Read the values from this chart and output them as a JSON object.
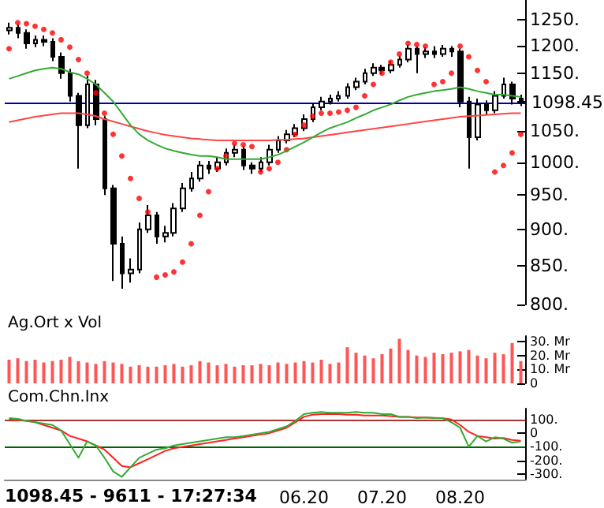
{
  "chart_data": [
    {
      "type": "candlestick",
      "tick_labels": "y",
      "log": true,
      "color": "#000000",
      "categories": [
        null,
        null,
        null,
        null,
        null,
        null,
        null,
        null,
        null,
        null,
        null,
        null,
        null,
        null,
        null,
        null,
        null,
        null,
        null,
        null,
        null,
        null,
        null,
        null,
        null,
        null,
        null,
        null,
        null,
        null,
        null,
        null,
        null,
        null,
        "06.20",
        null,
        null,
        null,
        null,
        null,
        null,
        null,
        null,
        "07.20",
        null,
        null,
        null,
        null,
        null,
        null,
        null,
        null,
        "08.20",
        null,
        null,
        null,
        null,
        null,
        null,
        null
      ],
      "ohlc": [
        [
          1230,
          1245,
          1222,
          1235
        ],
        [
          1235,
          1242,
          1215,
          1225
        ],
        [
          1225,
          1232,
          1195,
          1205
        ],
        [
          1205,
          1220,
          1198,
          1212
        ],
        [
          1212,
          1220,
          1200,
          1208
        ],
        [
          1208,
          1215,
          1172,
          1180
        ],
        [
          1180,
          1188,
          1140,
          1150
        ],
        [
          1150,
          1158,
          1100,
          1110
        ],
        [
          1110,
          1115,
          990,
          1060
        ],
        [
          1060,
          1145,
          1055,
          1130
        ],
        [
          1130,
          1138,
          1060,
          1070
        ],
        [
          1070,
          1075,
          950,
          960
        ],
        [
          960,
          965,
          830,
          880
        ],
        [
          880,
          890,
          820,
          840
        ],
        [
          840,
          860,
          828,
          845
        ],
        [
          845,
          910,
          840,
          900
        ],
        [
          900,
          935,
          895,
          920
        ],
        [
          920,
          925,
          880,
          890
        ],
        [
          890,
          905,
          882,
          895
        ],
        [
          895,
          938,
          890,
          930
        ],
        [
          930,
          968,
          925,
          960
        ],
        [
          960,
          985,
          955,
          975
        ],
        [
          975,
          1002,
          970,
          995
        ],
        [
          995,
          1002,
          982,
          990
        ],
        [
          990,
          1008,
          985,
          1000
        ],
        [
          1000,
          1022,
          995,
          1015
        ],
        [
          1015,
          1028,
          1008,
          1020
        ],
        [
          1020,
          1025,
          988,
          995
        ],
        [
          995,
          1000,
          982,
          990
        ],
        [
          990,
          1008,
          985,
          1000
        ],
        [
          1000,
          1028,
          995,
          1020
        ],
        [
          1020,
          1042,
          1015,
          1035
        ],
        [
          1035,
          1052,
          1030,
          1045
        ],
        [
          1045,
          1062,
          1040,
          1055
        ],
        [
          1055,
          1078,
          1050,
          1070
        ],
        [
          1070,
          1098,
          1065,
          1090
        ],
        [
          1090,
          1108,
          1085,
          1100
        ],
        [
          1100,
          1112,
          1095,
          1105
        ],
        [
          1105,
          1118,
          1100,
          1110
        ],
        [
          1110,
          1132,
          1105,
          1125
        ],
        [
          1125,
          1142,
          1120,
          1135
        ],
        [
          1135,
          1158,
          1130,
          1150
        ],
        [
          1150,
          1168,
          1145,
          1160
        ],
        [
          1160,
          1165,
          1148,
          1155
        ],
        [
          1155,
          1172,
          1150,
          1165
        ],
        [
          1165,
          1182,
          1160,
          1175
        ],
        [
          1175,
          1202,
          1170,
          1195
        ],
        [
          1195,
          1200,
          1150,
          1185
        ],
        [
          1185,
          1198,
          1178,
          1190
        ],
        [
          1190,
          1200,
          1178,
          1185
        ],
        [
          1185,
          1202,
          1180,
          1195
        ],
        [
          1195,
          1200,
          1180,
          1190
        ],
        [
          1190,
          1195,
          1090,
          1100
        ],
        [
          1100,
          1108,
          990,
          1040
        ],
        [
          1040,
          1105,
          1035,
          1095
        ],
        [
          1095,
          1102,
          1078,
          1085
        ],
        [
          1085,
          1118,
          1080,
          1110
        ],
        [
          1110,
          1142,
          1105,
          1130
        ],
        [
          1130,
          1135,
          1095,
          1105
        ],
        [
          1105,
          1112,
          1092,
          1098.45
        ]
      ],
      "series": [
        {
          "type": "line",
          "color": "#33aa33",
          "marker": "none",
          "values": [
            1140,
            1145,
            1150,
            1155,
            1158,
            1160,
            1158,
            1152,
            1148,
            1140,
            1130,
            1115,
            1100,
            1080,
            1060,
            1045,
            1035,
            1028,
            1022,
            1018,
            1015,
            1012,
            1010,
            1010,
            1008,
            1005,
            1005,
            1005,
            1005,
            1005,
            1008,
            1012,
            1018,
            1025,
            1032,
            1040,
            1048,
            1055,
            1060,
            1065,
            1072,
            1078,
            1085,
            1090,
            1095,
            1102,
            1108,
            1112,
            1115,
            1118,
            1120,
            1122,
            1125,
            1122,
            1118,
            1115,
            1112,
            1112,
            1110,
            1108
          ]
        },
        {
          "type": "line",
          "color": "#ff4444",
          "marker": "none",
          "values": [
            1065,
            1068,
            1071,
            1074,
            1076,
            1078,
            1080,
            1080,
            1080,
            1078,
            1075,
            1070,
            1066,
            1062,
            1058,
            1054,
            1050,
            1047,
            1044,
            1042,
            1040,
            1038,
            1037,
            1036,
            1035,
            1035,
            1035,
            1035,
            1035,
            1035,
            1035,
            1036,
            1036,
            1037,
            1038,
            1040,
            1042,
            1044,
            1046,
            1048,
            1050,
            1052,
            1054,
            1056,
            1058,
            1060,
            1062,
            1064,
            1066,
            1068,
            1070,
            1072,
            1074,
            1075,
            1076,
            1077,
            1078,
            1079,
            1080,
            1080
          ]
        },
        {
          "type": "scatter",
          "color": "#ff0000",
          "marker": "circle",
          "values": [
            1195,
            1245,
            1243,
            1238,
            1232,
            1225,
            1212,
            1198,
            1175,
            1150,
            1115,
            1080,
            1045,
            1010,
            975,
            945,
            925,
            835,
            838,
            842,
            855,
            880,
            920,
            955,
            990,
            1010,
            1030,
            1028,
            1025,
            985,
            990,
            1000,
            1020,
            1045,
            1060,
            1075,
            1080,
            1080,
            1082,
            1085,
            1090,
            1110,
            1130,
            1150,
            1170,
            1185,
            1205,
            1203,
            1200,
            1130,
            1135,
            1150,
            1200,
            1180,
            1155,
            1135,
            985,
            995,
            1015,
            1045
          ]
        }
      ],
      "ylim": [
        800,
        1290
      ],
      "yticks": [
        {
          "value": 800,
          "label": "800."
        },
        {
          "value": 850,
          "label": "850."
        },
        {
          "value": 900,
          "label": "900."
        },
        {
          "value": 950,
          "label": "950."
        },
        {
          "value": 1000,
          "label": "1000."
        },
        {
          "value": 1050,
          "label": "1050."
        },
        {
          "value": 1100,
          "label": null
        },
        {
          "value": 1150,
          "label": "1150."
        },
        {
          "value": 1200,
          "label": "1200."
        },
        {
          "value": 1250,
          "label": "1250."
        }
      ],
      "ref_lines": [
        {
          "axis": "y",
          "value": 1098.45,
          "label": "1098.45",
          "color": "#0000aa"
        }
      ]
    },
    {
      "type": "bar",
      "title": "Ag.Ort x Vol",
      "tick_labels": "y",
      "color": "#ff5555",
      "categories": [
        null,
        null,
        null,
        null,
        null,
        null,
        null,
        null,
        null,
        null,
        null,
        null,
        null,
        null,
        null,
        null,
        null,
        null,
        null,
        null,
        null,
        null,
        null,
        null,
        null,
        null,
        null,
        null,
        null,
        null,
        null,
        null,
        null,
        null,
        "06.20",
        null,
        null,
        null,
        null,
        null,
        null,
        null,
        null,
        "07.20",
        null,
        null,
        null,
        null,
        null,
        null,
        null,
        null,
        "08.20",
        null,
        null,
        null,
        null,
        null,
        null,
        null
      ],
      "values": [
        17,
        18,
        16,
        17,
        15,
        16,
        17,
        19,
        16,
        15,
        14,
        16,
        15,
        14,
        12,
        13,
        12,
        12,
        13,
        14,
        12,
        13,
        16,
        15,
        13,
        14,
        12,
        13,
        13,
        14,
        13,
        15,
        14,
        15,
        16,
        15,
        17,
        14,
        15,
        26,
        22,
        20,
        18,
        21,
        25,
        32,
        24,
        20,
        19,
        22,
        21,
        22,
        23,
        24,
        20,
        18,
        22,
        21,
        29,
        16
      ],
      "ylim": [
        0,
        34
      ],
      "yticks": [
        {
          "value": 0,
          "label": "0"
        },
        {
          "value": 10,
          "label": "10. Mr"
        },
        {
          "value": 20,
          "label": "20. Mr"
        },
        {
          "value": 30,
          "label": "30. Mr"
        }
      ]
    },
    {
      "type": "line",
      "title": "Com.Chn.Inx",
      "marker": "none",
      "categories": [
        null,
        null,
        null,
        null,
        null,
        null,
        null,
        null,
        null,
        null,
        null,
        null,
        null,
        null,
        null,
        null,
        null,
        null,
        null,
        null,
        null,
        null,
        null,
        null,
        null,
        null,
        null,
        null,
        null,
        null,
        null,
        null,
        null,
        null,
        "06.20",
        null,
        null,
        null,
        null,
        null,
        null,
        null,
        null,
        "07.20",
        null,
        null,
        null,
        null,
        null,
        null,
        null,
        null,
        "08.20",
        null,
        null,
        null,
        null,
        null,
        null,
        null
      ],
      "series": [
        {
          "color": "#33aa33",
          "values": [
            110,
            105,
            90,
            80,
            70,
            60,
            20,
            -80,
            -180,
            -60,
            -90,
            -180,
            -280,
            -320,
            -250,
            -180,
            -150,
            -120,
            -110,
            -90,
            -80,
            -70,
            -60,
            -50,
            -40,
            -30,
            -30,
            -20,
            -10,
            0,
            10,
            30,
            50,
            90,
            140,
            150,
            155,
            150,
            150,
            150,
            155,
            150,
            150,
            140,
            140,
            120,
            120,
            110,
            115,
            110,
            110,
            80,
            40,
            -100,
            -20,
            -60,
            -30,
            -40,
            -70,
            -60
          ]
        },
        {
          "color": "#ff2020",
          "values": [
            100,
            95,
            90,
            80,
            60,
            40,
            20,
            -20,
            -40,
            -60,
            -90,
            -120,
            -180,
            -240,
            -250,
            -220,
            -190,
            -160,
            -130,
            -110,
            -100,
            -90,
            -80,
            -70,
            -60,
            -50,
            -40,
            -30,
            -20,
            -10,
            0,
            20,
            40,
            80,
            120,
            135,
            140,
            140,
            140,
            135,
            135,
            130,
            130,
            130,
            125,
            120,
            120,
            115,
            115,
            112,
            110,
            100,
            60,
            10,
            -20,
            -30,
            -40,
            -35,
            -50,
            -55
          ]
        }
      ],
      "ylim": [
        -340,
        180
      ],
      "yticks": [
        {
          "value": 100,
          "label": "100."
        },
        {
          "value": 0,
          "label": "0"
        },
        {
          "value": -100,
          "label": "-100."
        },
        {
          "value": -200,
          "label": "-200."
        },
        {
          "value": -300,
          "label": "-300."
        }
      ],
      "ref_lines": [
        {
          "axis": "y",
          "value": 100,
          "color": "#aa3333"
        },
        {
          "axis": "y",
          "value": -100,
          "color": "#006600"
        }
      ],
      "annotations": [
        "1098.45 - 9611 - 17:27:34"
      ]
    }
  ]
}
